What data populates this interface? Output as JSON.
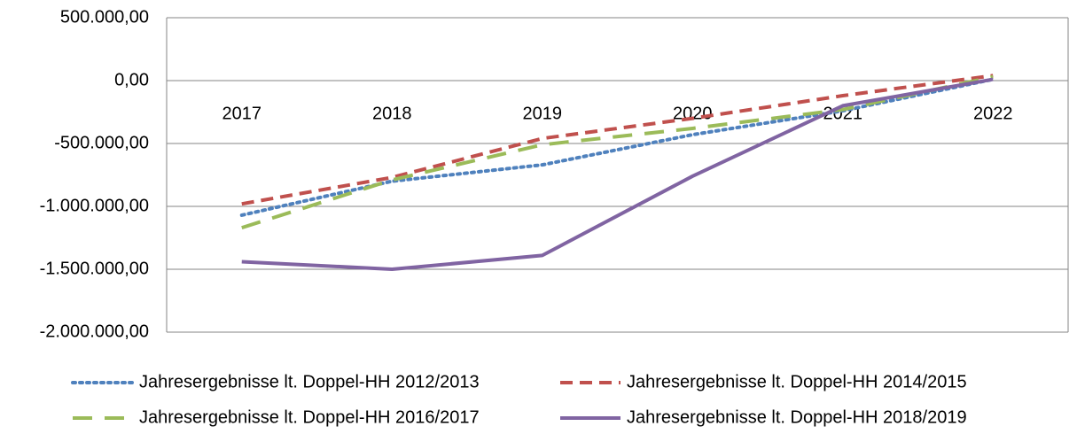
{
  "chart_data": {
    "type": "line",
    "categories": [
      "2017",
      "2018",
      "2019",
      "2020",
      "2021",
      "2022"
    ],
    "series": [
      {
        "name": "Jahresergebnisse lt. Doppel-HH 2012/2013",
        "color": "#4f81bd",
        "dash": "dotted",
        "values": [
          -1070000,
          -800000,
          -670000,
          -430000,
          -240000,
          10000
        ]
      },
      {
        "name": "Jahresergebnisse lt. Doppel-HH 2014/2015",
        "color": "#c0504d",
        "dash": "dashed",
        "values": [
          -980000,
          -770000,
          -460000,
          -300000,
          -120000,
          40000
        ]
      },
      {
        "name": "Jahresergebnisse lt. Doppel-HH 2016/2017",
        "color": "#9bbb59",
        "dash": "long-dashed",
        "values": [
          -1170000,
          -790000,
          -510000,
          -380000,
          -230000,
          30000
        ]
      },
      {
        "name": "Jahresergebnisse lt. Doppel-HH 2018/2019",
        "color": "#8064a2",
        "dash": "solid",
        "values": [
          -1440000,
          -1500000,
          -1390000,
          -760000,
          -200000,
          10000
        ]
      }
    ],
    "ylim": [
      -2000000,
      500000
    ],
    "yticks": [
      {
        "value": -2000000,
        "label": "-2.000.000,00"
      },
      {
        "value": -1500000,
        "label": "-1.500.000,00"
      },
      {
        "value": -1000000,
        "label": "-1.000.000,00"
      },
      {
        "value": -500000,
        "label": "-500.000,00"
      },
      {
        "value": 0,
        "label": "0,00"
      },
      {
        "value": 500000,
        "label": "500.000,00"
      }
    ],
    "grid": true
  }
}
